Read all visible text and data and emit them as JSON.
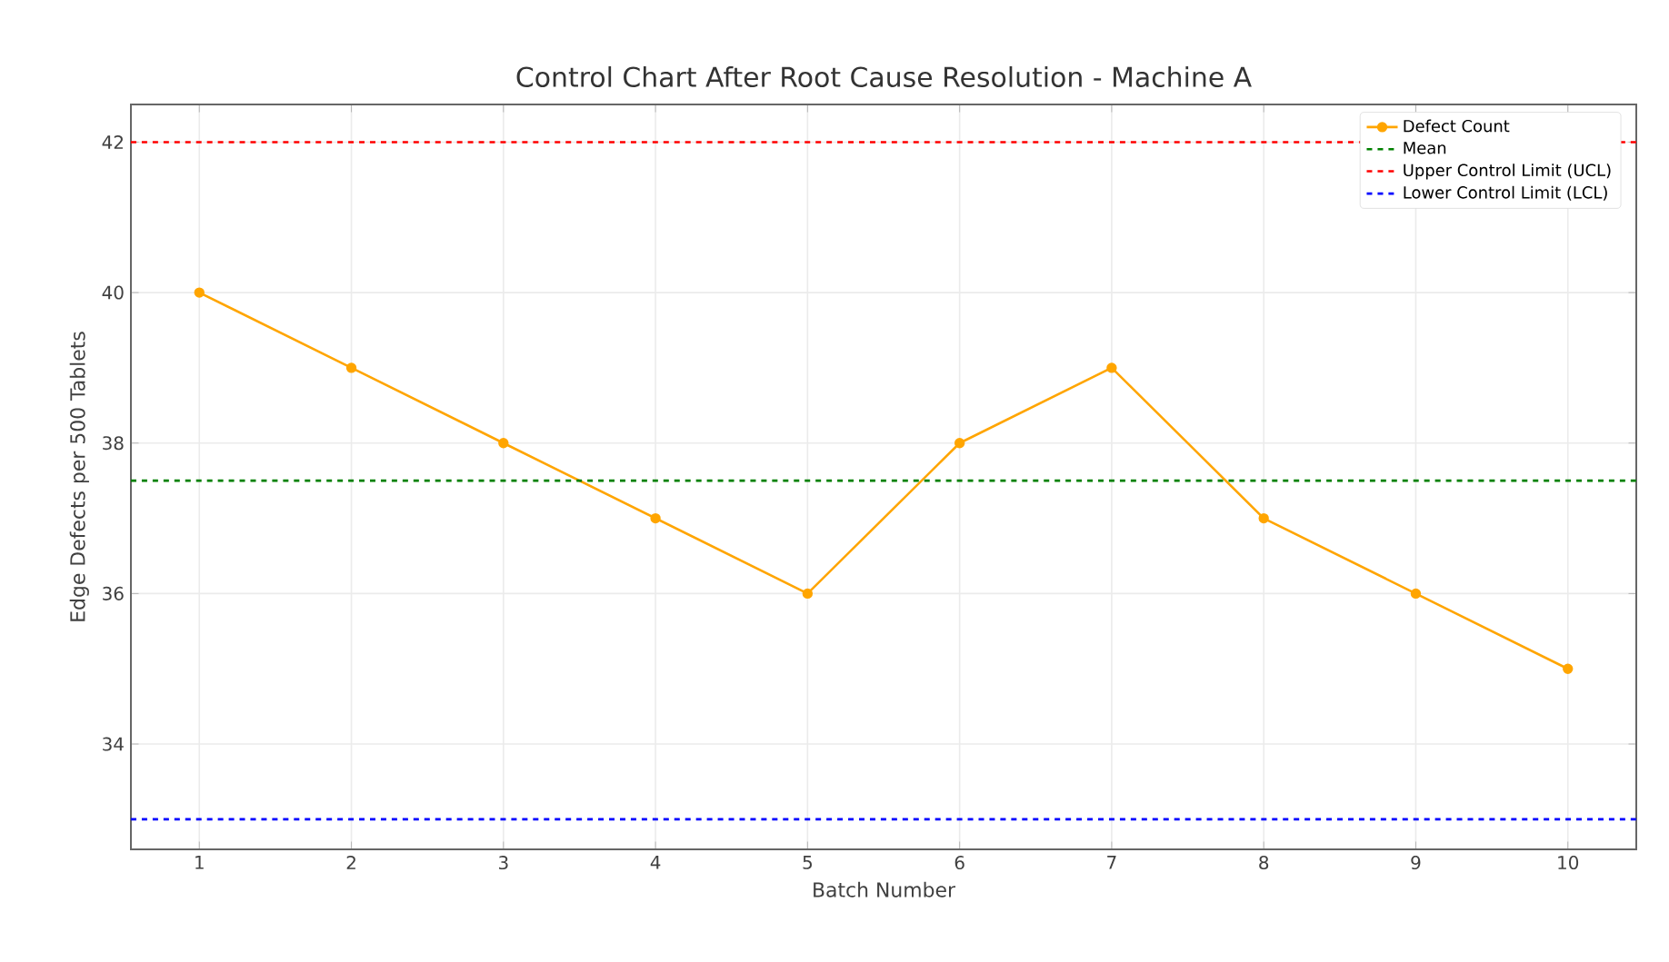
{
  "chart_data": {
    "type": "line",
    "title": "Control Chart After Root Cause Resolution - Machine A",
    "xlabel": "Batch Number",
    "ylabel": "Edge Defects per 500 Tablets",
    "x": [
      1,
      2,
      3,
      4,
      5,
      6,
      7,
      8,
      9,
      10
    ],
    "series": [
      {
        "name": "Defect Count",
        "color": "#ffa500",
        "values": [
          40,
          39,
          38,
          37,
          36,
          38,
          39,
          37,
          36,
          35
        ]
      }
    ],
    "ref_lines": [
      {
        "axis": "y",
        "value": 37.5,
        "label": "Mean",
        "color": "#008000",
        "line_style": "dashed"
      },
      {
        "axis": "y",
        "value": 42,
        "label": "Upper Control Limit (UCL)",
        "color": "#ff0000",
        "line_style": "dashed"
      },
      {
        "axis": "y",
        "value": 33,
        "label": "Lower Control Limit (LCL)",
        "color": "#0000ff",
        "line_style": "dashed"
      }
    ],
    "xlim": [
      0.55,
      10.45
    ],
    "ylim": [
      32.6,
      42.5
    ],
    "xticks": [
      1,
      2,
      3,
      4,
      5,
      6,
      7,
      8,
      9,
      10
    ],
    "yticks": [
      34,
      36,
      38,
      40,
      42
    ],
    "grid": true,
    "legend": "top right",
    "marker": "circle",
    "line_style": "solid"
  }
}
